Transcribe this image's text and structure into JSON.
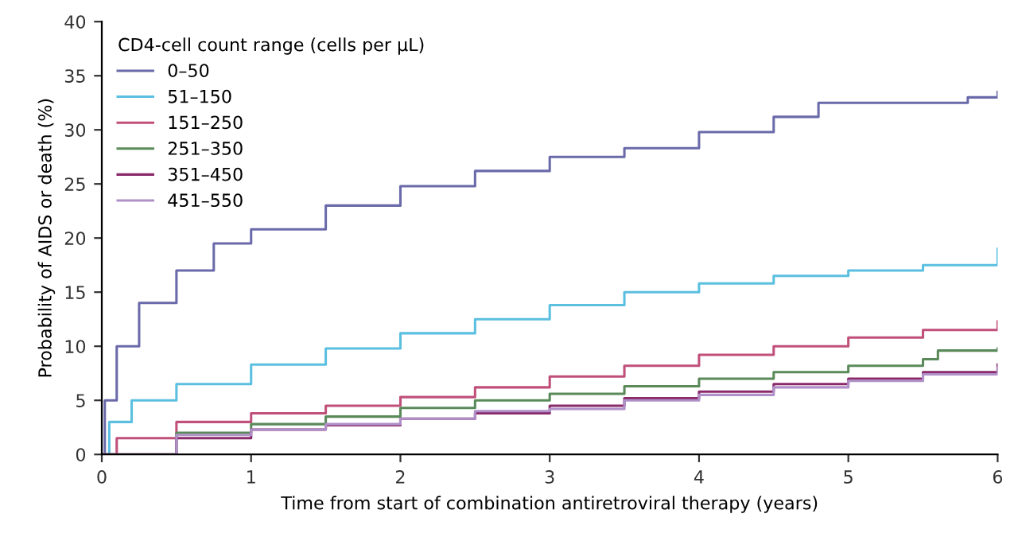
{
  "chart_data": {
    "type": "step",
    "xlabel": "Time from start of combination antiretroviral therapy (years)",
    "ylabel": "Probability of AIDS or death (%)",
    "legend_title": "CD4-cell count range (cells per µL)",
    "legend": "top left",
    "grid": false,
    "marker": "none",
    "line_style": "solid",
    "xlim": [
      0,
      6
    ],
    "xticks": [
      0,
      1,
      2,
      3,
      4,
      5,
      6
    ],
    "ylim": [
      0,
      40
    ],
    "yticks": [
      0,
      5,
      10,
      15,
      20,
      25,
      30,
      35,
      40
    ],
    "series": [
      {
        "name": "0–50",
        "color": "#6a6aaa",
        "x": [
          0,
          0.02,
          0.1,
          0.25,
          0.5,
          0.75,
          1,
          1.5,
          2,
          2.5,
          3,
          3.5,
          4,
          4.5,
          4.8,
          5,
          5.5,
          5.8,
          6
        ],
        "values": [
          0,
          5,
          10,
          14,
          17,
          19.5,
          20.8,
          23,
          24.8,
          26.2,
          27.5,
          28.3,
          29.8,
          31.2,
          32.5,
          32.5,
          32.5,
          33,
          33.5
        ]
      },
      {
        "name": "51–150",
        "color": "#5bbfe0",
        "x": [
          0,
          0.05,
          0.2,
          0.5,
          1,
          1.5,
          2,
          2.5,
          3,
          3.5,
          4,
          4.5,
          5,
          5.5,
          6
        ],
        "values": [
          0,
          3,
          5,
          6.5,
          8.3,
          9.8,
          11.2,
          12.5,
          13.8,
          15,
          15.8,
          16.5,
          17,
          17.5,
          19
        ]
      },
      {
        "name": "151–250",
        "color": "#c0507a",
        "x": [
          0,
          0.1,
          0.5,
          1,
          1.5,
          2,
          2.5,
          3,
          3.5,
          4,
          4.5,
          5,
          5.5,
          6
        ],
        "values": [
          0,
          1.5,
          3,
          3.8,
          4.5,
          5.3,
          6.2,
          7.2,
          8.2,
          9.2,
          10,
          10.8,
          11.5,
          12.3
        ]
      },
      {
        "name": "251–350",
        "color": "#5a8a5a",
        "x": [
          0,
          0.5,
          1,
          1.5,
          2,
          2.5,
          3,
          3.5,
          4,
          4.5,
          5,
          5.5,
          5.6,
          6
        ],
        "values": [
          0,
          2,
          2.8,
          3.5,
          4.3,
          5,
          5.6,
          6.3,
          7,
          7.6,
          8.2,
          8.8,
          9.6,
          9.8
        ]
      },
      {
        "name": "351–450",
        "color": "#8a2a6a",
        "x": [
          0,
          0.5,
          1,
          1.5,
          2,
          2.5,
          3,
          3.5,
          4,
          4.5,
          5,
          5.5,
          6
        ],
        "values": [
          0,
          1.5,
          2.3,
          2.7,
          3.3,
          3.8,
          4.5,
          5.2,
          5.8,
          6.5,
          7,
          7.6,
          8.3
        ]
      },
      {
        "name": "451–550",
        "color": "#b090c8",
        "x": [
          0,
          0.5,
          1,
          1.5,
          2,
          2.5,
          3,
          3.5,
          4,
          4.5,
          5,
          5.5,
          6
        ],
        "values": [
          0,
          1.8,
          2.3,
          2.8,
          3.3,
          4,
          4.2,
          5,
          5.5,
          6.2,
          6.8,
          7.4,
          8
        ]
      }
    ]
  }
}
